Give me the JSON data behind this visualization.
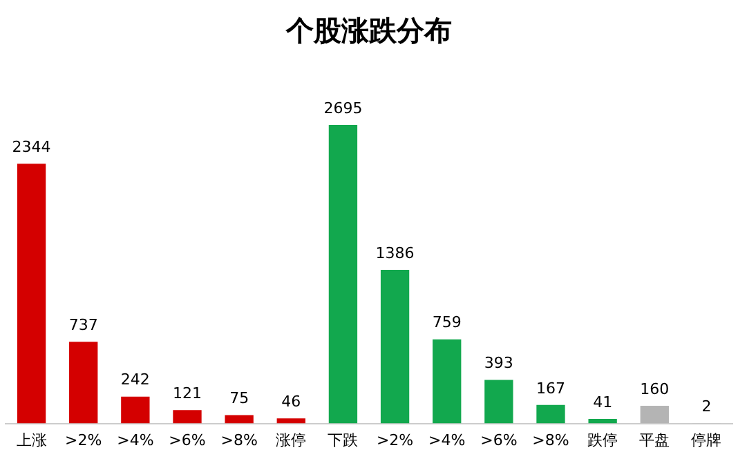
{
  "chart_data": {
    "type": "bar",
    "title": "个股涨跌分布",
    "categories": [
      "上涨",
      ">2%",
      ">4%",
      ">6%",
      ">8%",
      "涨停",
      "下跌",
      ">2%",
      ">4%",
      ">6%",
      ">8%",
      "跌停",
      "平盘",
      "停牌"
    ],
    "values": [
      2344,
      737,
      242,
      121,
      75,
      46,
      2695,
      1386,
      759,
      393,
      167,
      41,
      160,
      2
    ],
    "colors": [
      "#d40000",
      "#d40000",
      "#d40000",
      "#d40000",
      "#d40000",
      "#d40000",
      "#12a84e",
      "#12a84e",
      "#12a84e",
      "#12a84e",
      "#12a84e",
      "#12a84e",
      "#b4b4b4",
      "#b4b4b4"
    ],
    "data_labels": true,
    "grid": false,
    "legend": false,
    "tick_labels": "x"
  }
}
